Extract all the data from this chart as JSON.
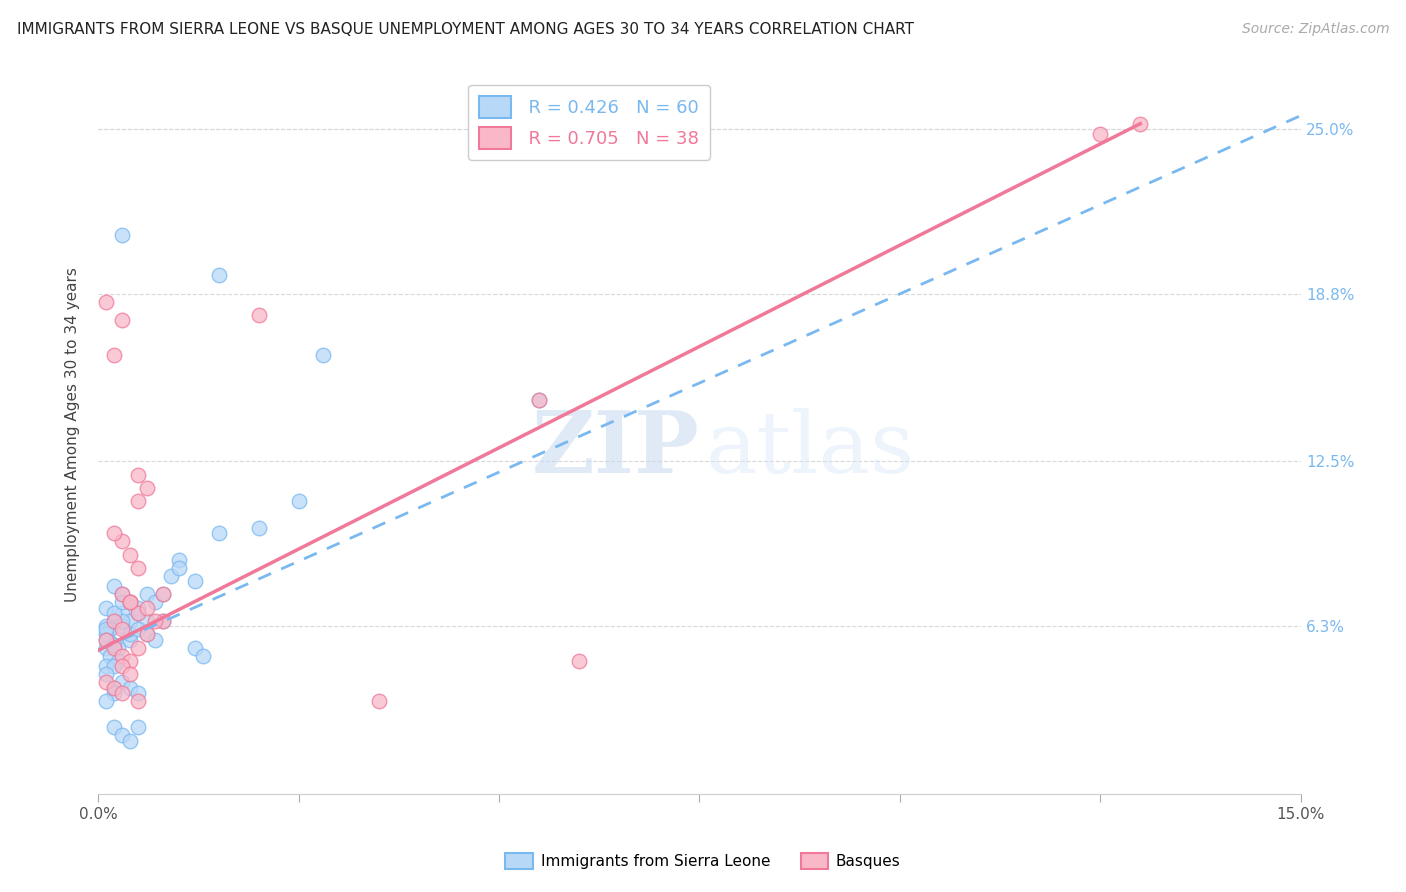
{
  "title": "IMMIGRANTS FROM SIERRA LEONE VS BASQUE UNEMPLOYMENT AMONG AGES 30 TO 34 YEARS CORRELATION CHART",
  "source": "Source: ZipAtlas.com",
  "ylabel": "Unemployment Among Ages 30 to 34 years",
  "xlim": [
    0,
    0.15
  ],
  "ylim": [
    0,
    0.27
  ],
  "ytop_line": 0.25,
  "legend_R1": "R = 0.426",
  "legend_N1": "N = 60",
  "legend_R2": "R = 0.705",
  "legend_N2": "N = 38",
  "legend_label1": "Immigrants from Sierra Leone",
  "legend_label2": "Basques",
  "watermark_zip": "ZIP",
  "watermark_atlas": "atlas",
  "blue_line_color": "#7ab8f0",
  "pink_line_color": "#f07898",
  "blue_dot_face": "#b8d8f8",
  "blue_dot_edge": "#7ab8f0",
  "pink_dot_face": "#f8b8c8",
  "pink_dot_edge": "#f07898",
  "grid_color": "#d8d8d8",
  "ytick_color": "#7ab8f0",
  "xtick_positions": [
    0.0,
    0.025,
    0.05,
    0.075,
    0.1,
    0.125,
    0.15
  ],
  "ytick_positions": [
    0.063,
    0.125,
    0.188,
    0.25
  ],
  "ytick_labels": [
    "6.3%",
    "12.5%",
    "18.8%",
    "25.0%"
  ],
  "blue_line_x": [
    0.0,
    0.15
  ],
  "blue_line_y": [
    0.054,
    0.255
  ],
  "pink_line_x": [
    0.0,
    0.13
  ],
  "pink_line_y": [
    0.054,
    0.252
  ],
  "blue_scatter": [
    [
      0.002,
      0.078
    ],
    [
      0.003,
      0.075
    ],
    [
      0.004,
      0.072
    ],
    [
      0.005,
      0.07
    ],
    [
      0.006,
      0.075
    ],
    [
      0.003,
      0.068
    ],
    [
      0.002,
      0.065
    ],
    [
      0.004,
      0.065
    ],
    [
      0.001,
      0.063
    ],
    [
      0.0015,
      0.062
    ],
    [
      0.003,
      0.063
    ],
    [
      0.005,
      0.068
    ],
    [
      0.007,
      0.072
    ],
    [
      0.006,
      0.065
    ],
    [
      0.008,
      0.075
    ],
    [
      0.009,
      0.082
    ],
    [
      0.004,
      0.058
    ],
    [
      0.0025,
      0.055
    ],
    [
      0.0015,
      0.057
    ],
    [
      0.001,
      0.06
    ],
    [
      0.001,
      0.055
    ],
    [
      0.0015,
      0.052
    ],
    [
      0.0025,
      0.05
    ],
    [
      0.001,
      0.048
    ],
    [
      0.002,
      0.048
    ],
    [
      0.003,
      0.065
    ],
    [
      0.004,
      0.06
    ],
    [
      0.005,
      0.062
    ],
    [
      0.006,
      0.06
    ],
    [
      0.007,
      0.058
    ],
    [
      0.001,
      0.07
    ],
    [
      0.002,
      0.068
    ],
    [
      0.003,
      0.072
    ],
    [
      0.008,
      0.065
    ],
    [
      0.01,
      0.088
    ],
    [
      0.01,
      0.085
    ],
    [
      0.012,
      0.08
    ],
    [
      0.015,
      0.098
    ],
    [
      0.02,
      0.1
    ],
    [
      0.025,
      0.11
    ],
    [
      0.003,
      0.21
    ],
    [
      0.015,
      0.195
    ],
    [
      0.028,
      0.165
    ],
    [
      0.055,
      0.148
    ],
    [
      0.001,
      0.045
    ],
    [
      0.002,
      0.04
    ],
    [
      0.003,
      0.042
    ],
    [
      0.004,
      0.04
    ],
    [
      0.005,
      0.038
    ],
    [
      0.002,
      0.038
    ],
    [
      0.001,
      0.035
    ],
    [
      0.002,
      0.025
    ],
    [
      0.003,
      0.022
    ],
    [
      0.004,
      0.02
    ],
    [
      0.005,
      0.025
    ],
    [
      0.001,
      0.062
    ],
    [
      0.001,
      0.058
    ],
    [
      0.002,
      0.056
    ],
    [
      0.012,
      0.055
    ],
    [
      0.013,
      0.052
    ]
  ],
  "pink_scatter": [
    [
      0.001,
      0.185
    ],
    [
      0.002,
      0.165
    ],
    [
      0.003,
      0.178
    ],
    [
      0.006,
      0.115
    ],
    [
      0.008,
      0.075
    ],
    [
      0.005,
      0.085
    ],
    [
      0.003,
      0.095
    ],
    [
      0.004,
      0.09
    ],
    [
      0.002,
      0.098
    ],
    [
      0.003,
      0.075
    ],
    [
      0.004,
      0.072
    ],
    [
      0.005,
      0.068
    ],
    [
      0.006,
      0.07
    ],
    [
      0.008,
      0.065
    ],
    [
      0.002,
      0.065
    ],
    [
      0.003,
      0.062
    ],
    [
      0.001,
      0.058
    ],
    [
      0.002,
      0.055
    ],
    [
      0.003,
      0.052
    ],
    [
      0.004,
      0.05
    ],
    [
      0.005,
      0.055
    ],
    [
      0.006,
      0.06
    ],
    [
      0.007,
      0.065
    ],
    [
      0.003,
      0.048
    ],
    [
      0.004,
      0.045
    ],
    [
      0.001,
      0.042
    ],
    [
      0.002,
      0.04
    ],
    [
      0.003,
      0.038
    ],
    [
      0.005,
      0.035
    ],
    [
      0.004,
      0.072
    ],
    [
      0.005,
      0.12
    ],
    [
      0.005,
      0.11
    ],
    [
      0.055,
      0.148
    ],
    [
      0.13,
      0.252
    ],
    [
      0.125,
      0.248
    ],
    [
      0.06,
      0.05
    ],
    [
      0.02,
      0.18
    ],
    [
      0.035,
      0.035
    ]
  ]
}
